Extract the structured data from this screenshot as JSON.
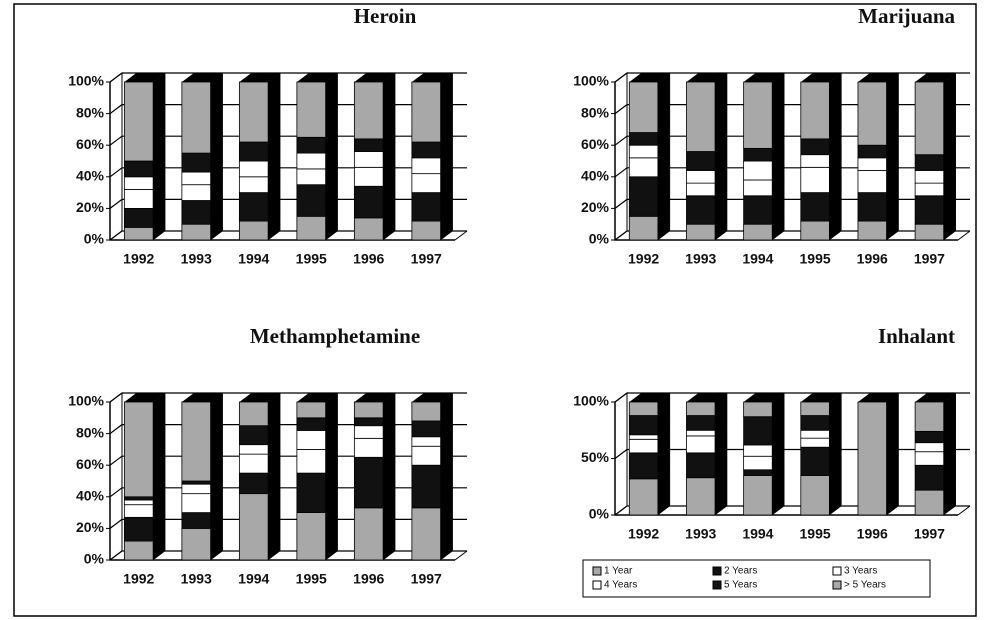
{
  "chart_data": [
    {
      "type": "bar",
      "stacked": true,
      "title": "Heroin",
      "categories": [
        "1992",
        "1993",
        "1994",
        "1995",
        "1996",
        "1997"
      ],
      "ylim": [
        0,
        100
      ],
      "yticks": [
        {
          "value": 0,
          "label": "0%"
        },
        {
          "value": 20,
          "label": "20%"
        },
        {
          "value": 40,
          "label": "40%"
        },
        {
          "value": 60,
          "label": "60%"
        },
        {
          "value": 80,
          "label": "80%"
        },
        {
          "value": 100,
          "label": "100%"
        }
      ],
      "grid": true,
      "series": [
        {
          "name": "1 Year",
          "color": "#a8a8a8",
          "values": [
            8,
            10,
            12,
            15,
            14,
            12
          ]
        },
        {
          "name": "2 Years",
          "color": "#111111",
          "values": [
            12,
            15,
            18,
            20,
            20,
            18
          ]
        },
        {
          "name": "3 Years",
          "color": "#ffffff",
          "values": [
            12,
            10,
            10,
            10,
            12,
            12
          ]
        },
        {
          "name": "4 Years",
          "color": "#ffffff",
          "values": [
            8,
            8,
            10,
            10,
            10,
            10
          ]
        },
        {
          "name": "5 Years",
          "color": "#111111",
          "values": [
            10,
            12,
            12,
            10,
            8,
            10
          ]
        },
        {
          "name": "> 5 Years",
          "color": "#a8a8a8",
          "values": [
            50,
            45,
            38,
            35,
            36,
            38
          ]
        }
      ]
    },
    {
      "type": "bar",
      "stacked": true,
      "title": "Marijuana",
      "categories": [
        "1992",
        "1993",
        "1994",
        "1995",
        "1996",
        "1997"
      ],
      "ylim": [
        0,
        100
      ],
      "yticks": [
        {
          "value": 0,
          "label": "0%"
        },
        {
          "value": 20,
          "label": "20%"
        },
        {
          "value": 40,
          "label": "40%"
        },
        {
          "value": 60,
          "label": "60%"
        },
        {
          "value": 80,
          "label": "80%"
        },
        {
          "value": 100,
          "label": "100%"
        }
      ],
      "grid": true,
      "series": [
        {
          "name": "1 Year",
          "color": "#a8a8a8",
          "values": [
            15,
            10,
            10,
            12,
            12,
            10
          ]
        },
        {
          "name": "2 Years",
          "color": "#111111",
          "values": [
            25,
            18,
            18,
            18,
            18,
            18
          ]
        },
        {
          "name": "3 Years",
          "color": "#ffffff",
          "values": [
            12,
            8,
            10,
            16,
            14,
            8
          ]
        },
        {
          "name": "4 Years",
          "color": "#ffffff",
          "values": [
            8,
            8,
            12,
            8,
            8,
            8
          ]
        },
        {
          "name": "5 Years",
          "color": "#111111",
          "values": [
            8,
            12,
            8,
            10,
            8,
            10
          ]
        },
        {
          "name": "> 5 Years",
          "color": "#a8a8a8",
          "values": [
            32,
            44,
            42,
            36,
            40,
            46
          ]
        }
      ]
    },
    {
      "type": "bar",
      "stacked": true,
      "title": "Methamphetamine",
      "categories": [
        "1992",
        "1993",
        "1994",
        "1995",
        "1996",
        "1997"
      ],
      "ylim": [
        0,
        100
      ],
      "yticks": [
        {
          "value": 0,
          "label": "0%"
        },
        {
          "value": 20,
          "label": "20%"
        },
        {
          "value": 40,
          "label": "40%"
        },
        {
          "value": 60,
          "label": "60%"
        },
        {
          "value": 80,
          "label": "80%"
        },
        {
          "value": 100,
          "label": "100%"
        }
      ],
      "grid": true,
      "series": [
        {
          "name": "1 Year",
          "color": "#a8a8a8",
          "values": [
            12,
            20,
            42,
            30,
            33,
            33
          ]
        },
        {
          "name": "2 Years",
          "color": "#111111",
          "values": [
            15,
            10,
            13,
            25,
            32,
            27
          ]
        },
        {
          "name": "3 Years",
          "color": "#ffffff",
          "values": [
            8,
            12,
            12,
            15,
            12,
            12
          ]
        },
        {
          "name": "4 Years",
          "color": "#ffffff",
          "values": [
            3,
            6,
            6,
            12,
            8,
            6
          ]
        },
        {
          "name": "5 Years",
          "color": "#111111",
          "values": [
            2,
            2,
            12,
            8,
            5,
            10
          ]
        },
        {
          "name": "> 5 Years",
          "color": "#a8a8a8",
          "values": [
            60,
            50,
            15,
            10,
            10,
            12
          ]
        }
      ]
    },
    {
      "type": "bar",
      "stacked": true,
      "title": "Inhalant",
      "categories": [
        "1992",
        "1993",
        "1994",
        "1995",
        "1996",
        "1997"
      ],
      "ylim": [
        0,
        100
      ],
      "yticks": [
        {
          "value": 0,
          "label": "0%"
        },
        {
          "value": 50,
          "label": "50%"
        },
        {
          "value": 100,
          "label": "100%"
        }
      ],
      "grid": true,
      "series": [
        {
          "name": "1 Year",
          "color": "#a8a8a8",
          "values": [
            32,
            33,
            35,
            35,
            100,
            22
          ]
        },
        {
          "name": "2 Years",
          "color": "#111111",
          "values": [
            23,
            22,
            5,
            25,
            0,
            22
          ]
        },
        {
          "name": "3 Years",
          "color": "#ffffff",
          "values": [
            12,
            15,
            12,
            8,
            0,
            12
          ]
        },
        {
          "name": "4 Years",
          "color": "#ffffff",
          "values": [
            4,
            5,
            10,
            7,
            0,
            8
          ]
        },
        {
          "name": "5 Years",
          "color": "#111111",
          "values": [
            17,
            13,
            25,
            13,
            0,
            10
          ]
        },
        {
          "name": "> 5 Years",
          "color": "#a8a8a8",
          "values": [
            12,
            12,
            13,
            12,
            0,
            26
          ]
        }
      ]
    }
  ]
}
